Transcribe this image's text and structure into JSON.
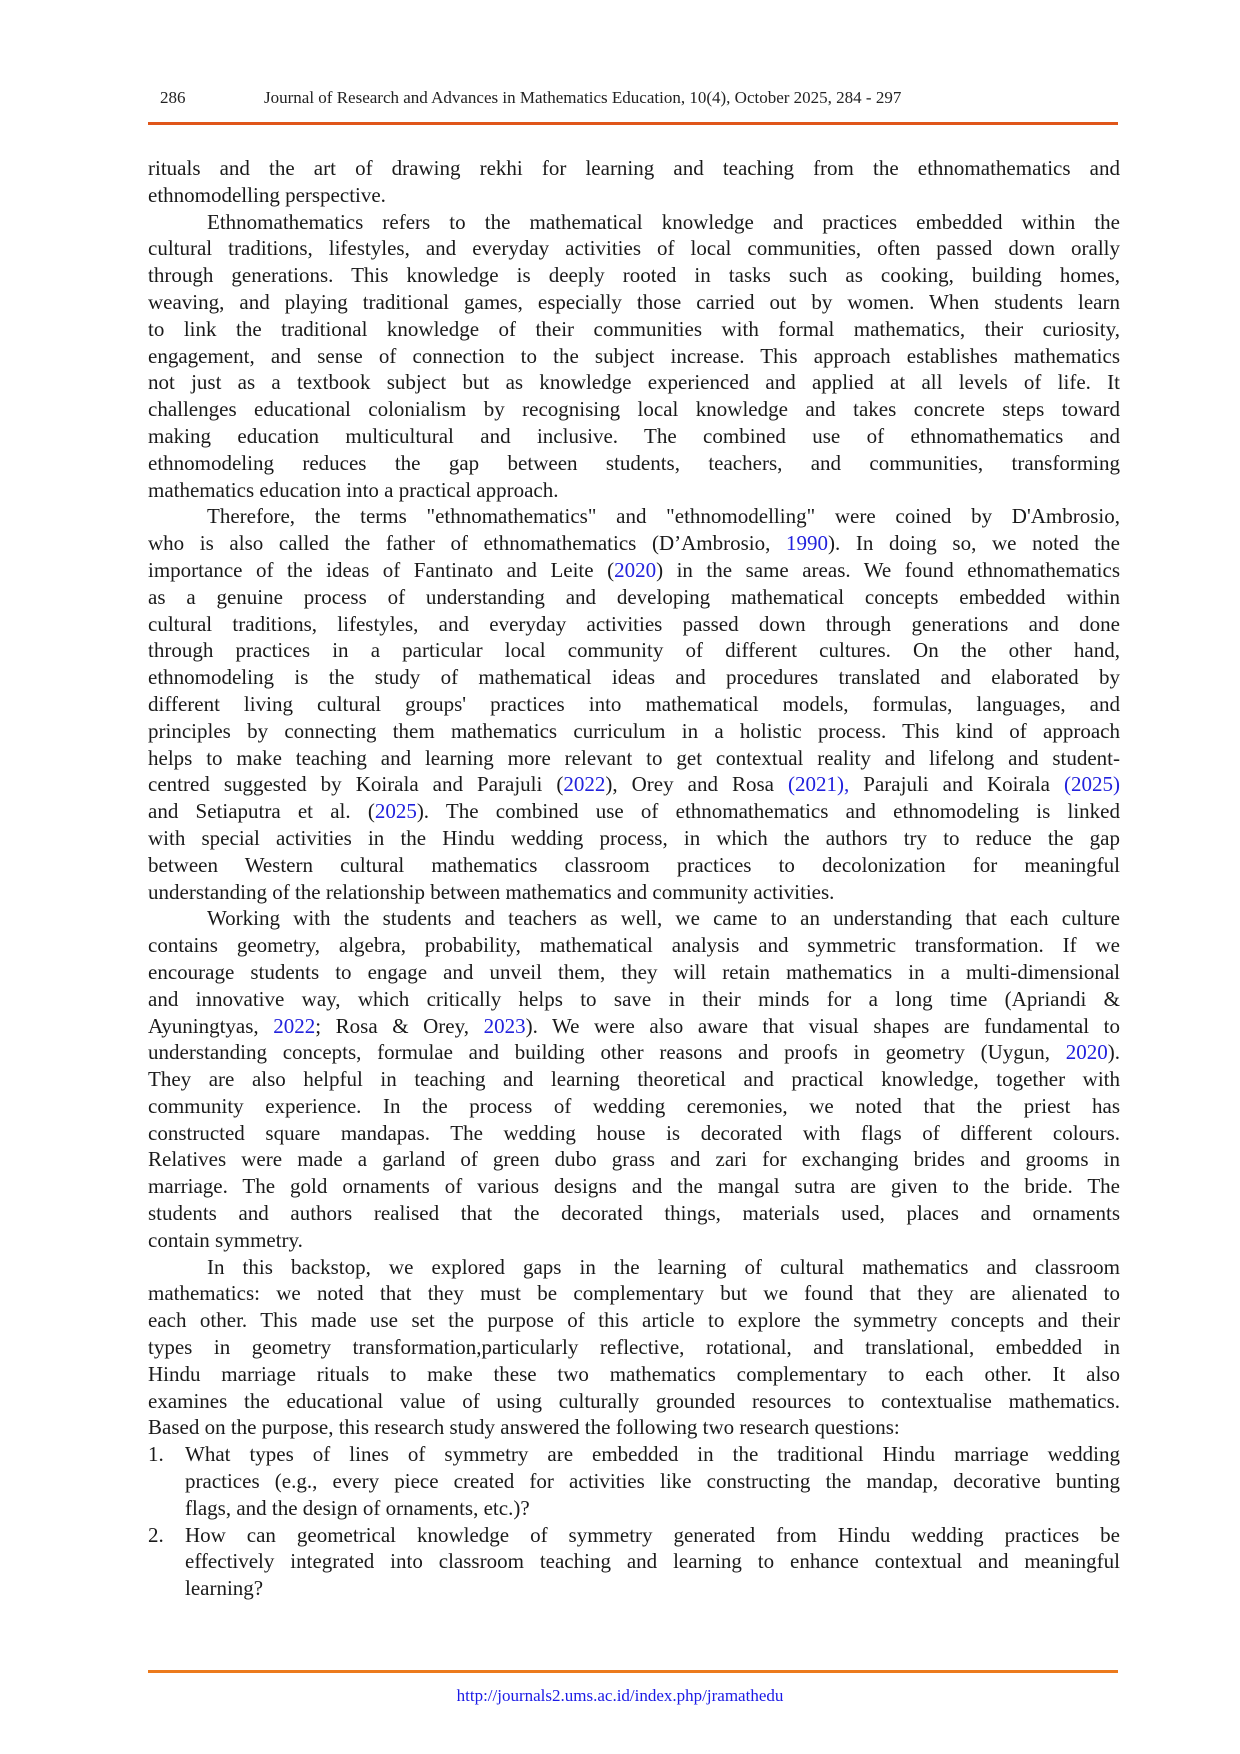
{
  "header": {
    "page_number": "286",
    "journal": "Journal of Research and Advances in Mathematics Education, 10(4), October 2025, 284 -  297"
  },
  "footer": {
    "url": "http://journals2.ums.ac.id/index.php/jramathedu"
  },
  "colors": {
    "rule": "#e0561a",
    "link": "#2222dd"
  },
  "paragraphs": [
    {
      "indent": false,
      "lines": [
        "rituals and the art of drawing rekhi for learning and teaching from the ethnomathematics and",
        "ethnomodelling perspective."
      ]
    },
    {
      "indent": true,
      "lines": [
        "Ethnomathematics refers to the mathematical knowledge and practices embedded within the",
        "cultural traditions, lifestyles, and everyday activities of local communities, often passed down orally",
        "through generations. This knowledge is deeply rooted in tasks such as cooking, building homes,",
        "weaving, and playing traditional games, especially those carried out by women. When students learn",
        "to link the traditional knowledge of their communities with formal mathematics, their curiosity,",
        "engagement, and sense of connection to the subject increase. This approach establishes mathematics",
        "not just as a textbook subject but as knowledge experienced and applied at all levels of life. It",
        "challenges educational colonialism by recognising local knowledge and takes concrete steps toward",
        "making education multicultural and inclusive. The combined use of ethnomathematics and",
        "ethnomodeling reduces the gap between students, teachers, and communities, transforming",
        "mathematics education into a practical approach."
      ]
    },
    {
      "indent": true,
      "lines": [
        "Therefore, the terms \"ethnomathematics\" and \"ethnomodelling\" were coined by D'Ambrosio,",
        [
          {
            "t": "who is also called the father of ethnomathematics (D’Ambrosio, "
          },
          {
            "t": "1990",
            "link": true
          },
          {
            "t": "). In doing so, we noted the"
          }
        ],
        [
          {
            "t": "importance of the ideas of Fantinato and Leite ("
          },
          {
            "t": "2020",
            "link": true
          },
          {
            "t": ") in the same areas. We found ethnomathematics"
          }
        ],
        "as a genuine process of understanding and developing mathematical concepts embedded within",
        "cultural traditions, lifestyles, and everyday activities passed down through generations and done",
        "through practices in a particular local community of different cultures. On the other hand,",
        "ethnomodeling is the study of mathematical ideas and procedures translated and elaborated by",
        "different living cultural groups' practices into mathematical models, formulas, languages, and",
        "principles by connecting them mathematics curriculum in a holistic process. This kind of approach",
        "helps to make teaching and learning more relevant to get contextual reality and lifelong and student-",
        [
          {
            "t": "centred suggested by Koirala and Parajuli ("
          },
          {
            "t": "2022",
            "link": true
          },
          {
            "t": "), Orey and Rosa "
          },
          {
            "t": "(2021),",
            "link": true
          },
          {
            "t": " Parajuli and Koirala "
          },
          {
            "t": "(2025)",
            "link": true
          }
        ],
        [
          {
            "t": "and Setiaputra et al. ("
          },
          {
            "t": "2025",
            "link": true
          },
          {
            "t": "). The combined use of ethnomathematics and ethnomodeling is linked"
          }
        ],
        "with special activities in the Hindu wedding process, in which the authors try to reduce the gap",
        "between Western cultural mathematics classroom practices to decolonization for meaningful",
        "understanding of the relationship between mathematics and community activities."
      ]
    },
    {
      "indent": true,
      "lines": [
        "Working with the students and teachers as well, we came to an understanding that each culture",
        "contains geometry, algebra, probability, mathematical analysis and symmetric transformation. If we",
        "encourage students to engage and unveil them, they will retain mathematics in a multi-dimensional",
        "and innovative way, which critically helps to save in their minds for a long time (Apriandi &",
        [
          {
            "t": "Ayuningtyas, "
          },
          {
            "t": "2022",
            "link": true
          },
          {
            "t": "; Rosa & Orey, "
          },
          {
            "t": "2023",
            "link": true
          },
          {
            "t": "). We were also aware that visual shapes are fundamental to"
          }
        ],
        [
          {
            "t": "understanding concepts, formulae and building other reasons and proofs in geometry (Uygun, "
          },
          {
            "t": "2020",
            "link": true
          },
          {
            "t": ")."
          }
        ],
        "They are also helpful in teaching and learning theoretical and practical knowledge, together with",
        "community experience. In the process of wedding ceremonies, we noted that the priest has",
        "constructed square mandapas. The wedding house is decorated with flags of different colours.",
        "Relatives were made a garland of green dubo grass and zari for exchanging brides and grooms in",
        "marriage. The gold ornaments of various designs and the mangal sutra are given to the bride. The",
        "students and authors realised that the decorated things, materials used, places and ornaments",
        "contain symmetry."
      ]
    },
    {
      "indent": true,
      "lines": [
        "In this backstop, we explored gaps in the learning of cultural mathematics and classroom",
        "mathematics: we noted that they must be complementary but we found that they are alienated to",
        "each other.  This made use set the purpose of this article to explore the symmetry concepts and their",
        "types in geometry transformation,particularly reflective, rotational, and translational, embedded in",
        "Hindu marriage rituals to make these two mathematics complementary to each other. It also",
        "examines the educational value of using culturally grounded resources to contextualise mathematics.",
        "Based on the purpose, this research study answered the following two research questions:"
      ]
    }
  ],
  "research_questions": [
    {
      "number": "1.",
      "lines": [
        "What types of lines of symmetry are embedded in the traditional Hindu marriage wedding",
        "practices (e.g., every piece created for activities like constructing the mandap, decorative bunting",
        "flags, and the design of ornaments, etc.)?"
      ]
    },
    {
      "number": "2.",
      "lines": [
        "How can geometrical knowledge of symmetry generated from Hindu wedding practices be",
        "effectively integrated into classroom teaching and learning to enhance contextual and meaningful",
        "learning?"
      ]
    }
  ]
}
